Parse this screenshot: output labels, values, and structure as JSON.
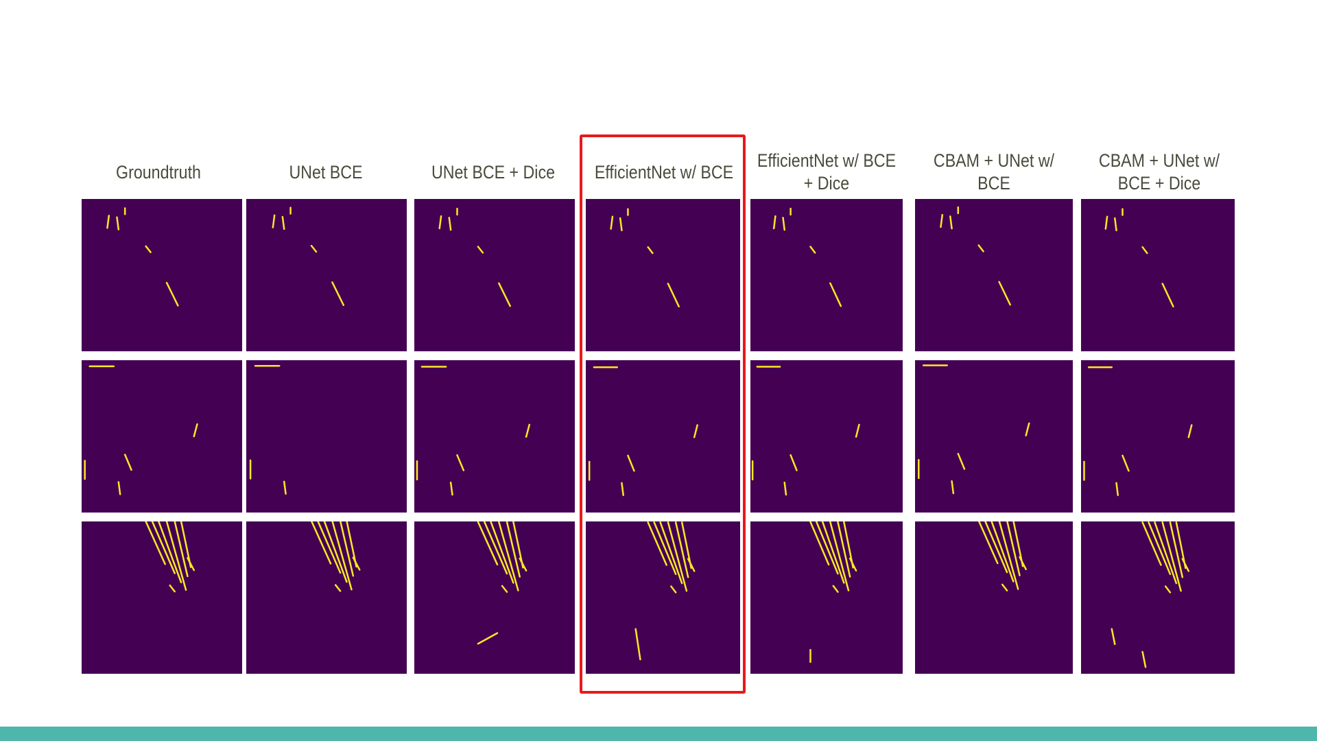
{
  "slide": {
    "column_labels": [
      "Groundtruth",
      "UNet BCE",
      "UNet BCE + Dice",
      "EfficientNet w/ BCE",
      "EfficientNet w/ BCE + Dice",
      "CBAM + UNet w/ BCE",
      "CBAM + UNet w/ BCE + Dice"
    ],
    "highlighted_column": "EfficientNet w/ BCE",
    "rows": 3,
    "colors": {
      "mask_background": "#440154",
      "mask_foreground": "#fde725",
      "highlight": "#e8191c",
      "footer_bar": "#4fb6ac",
      "label_text": "#4a4a3c"
    }
  }
}
